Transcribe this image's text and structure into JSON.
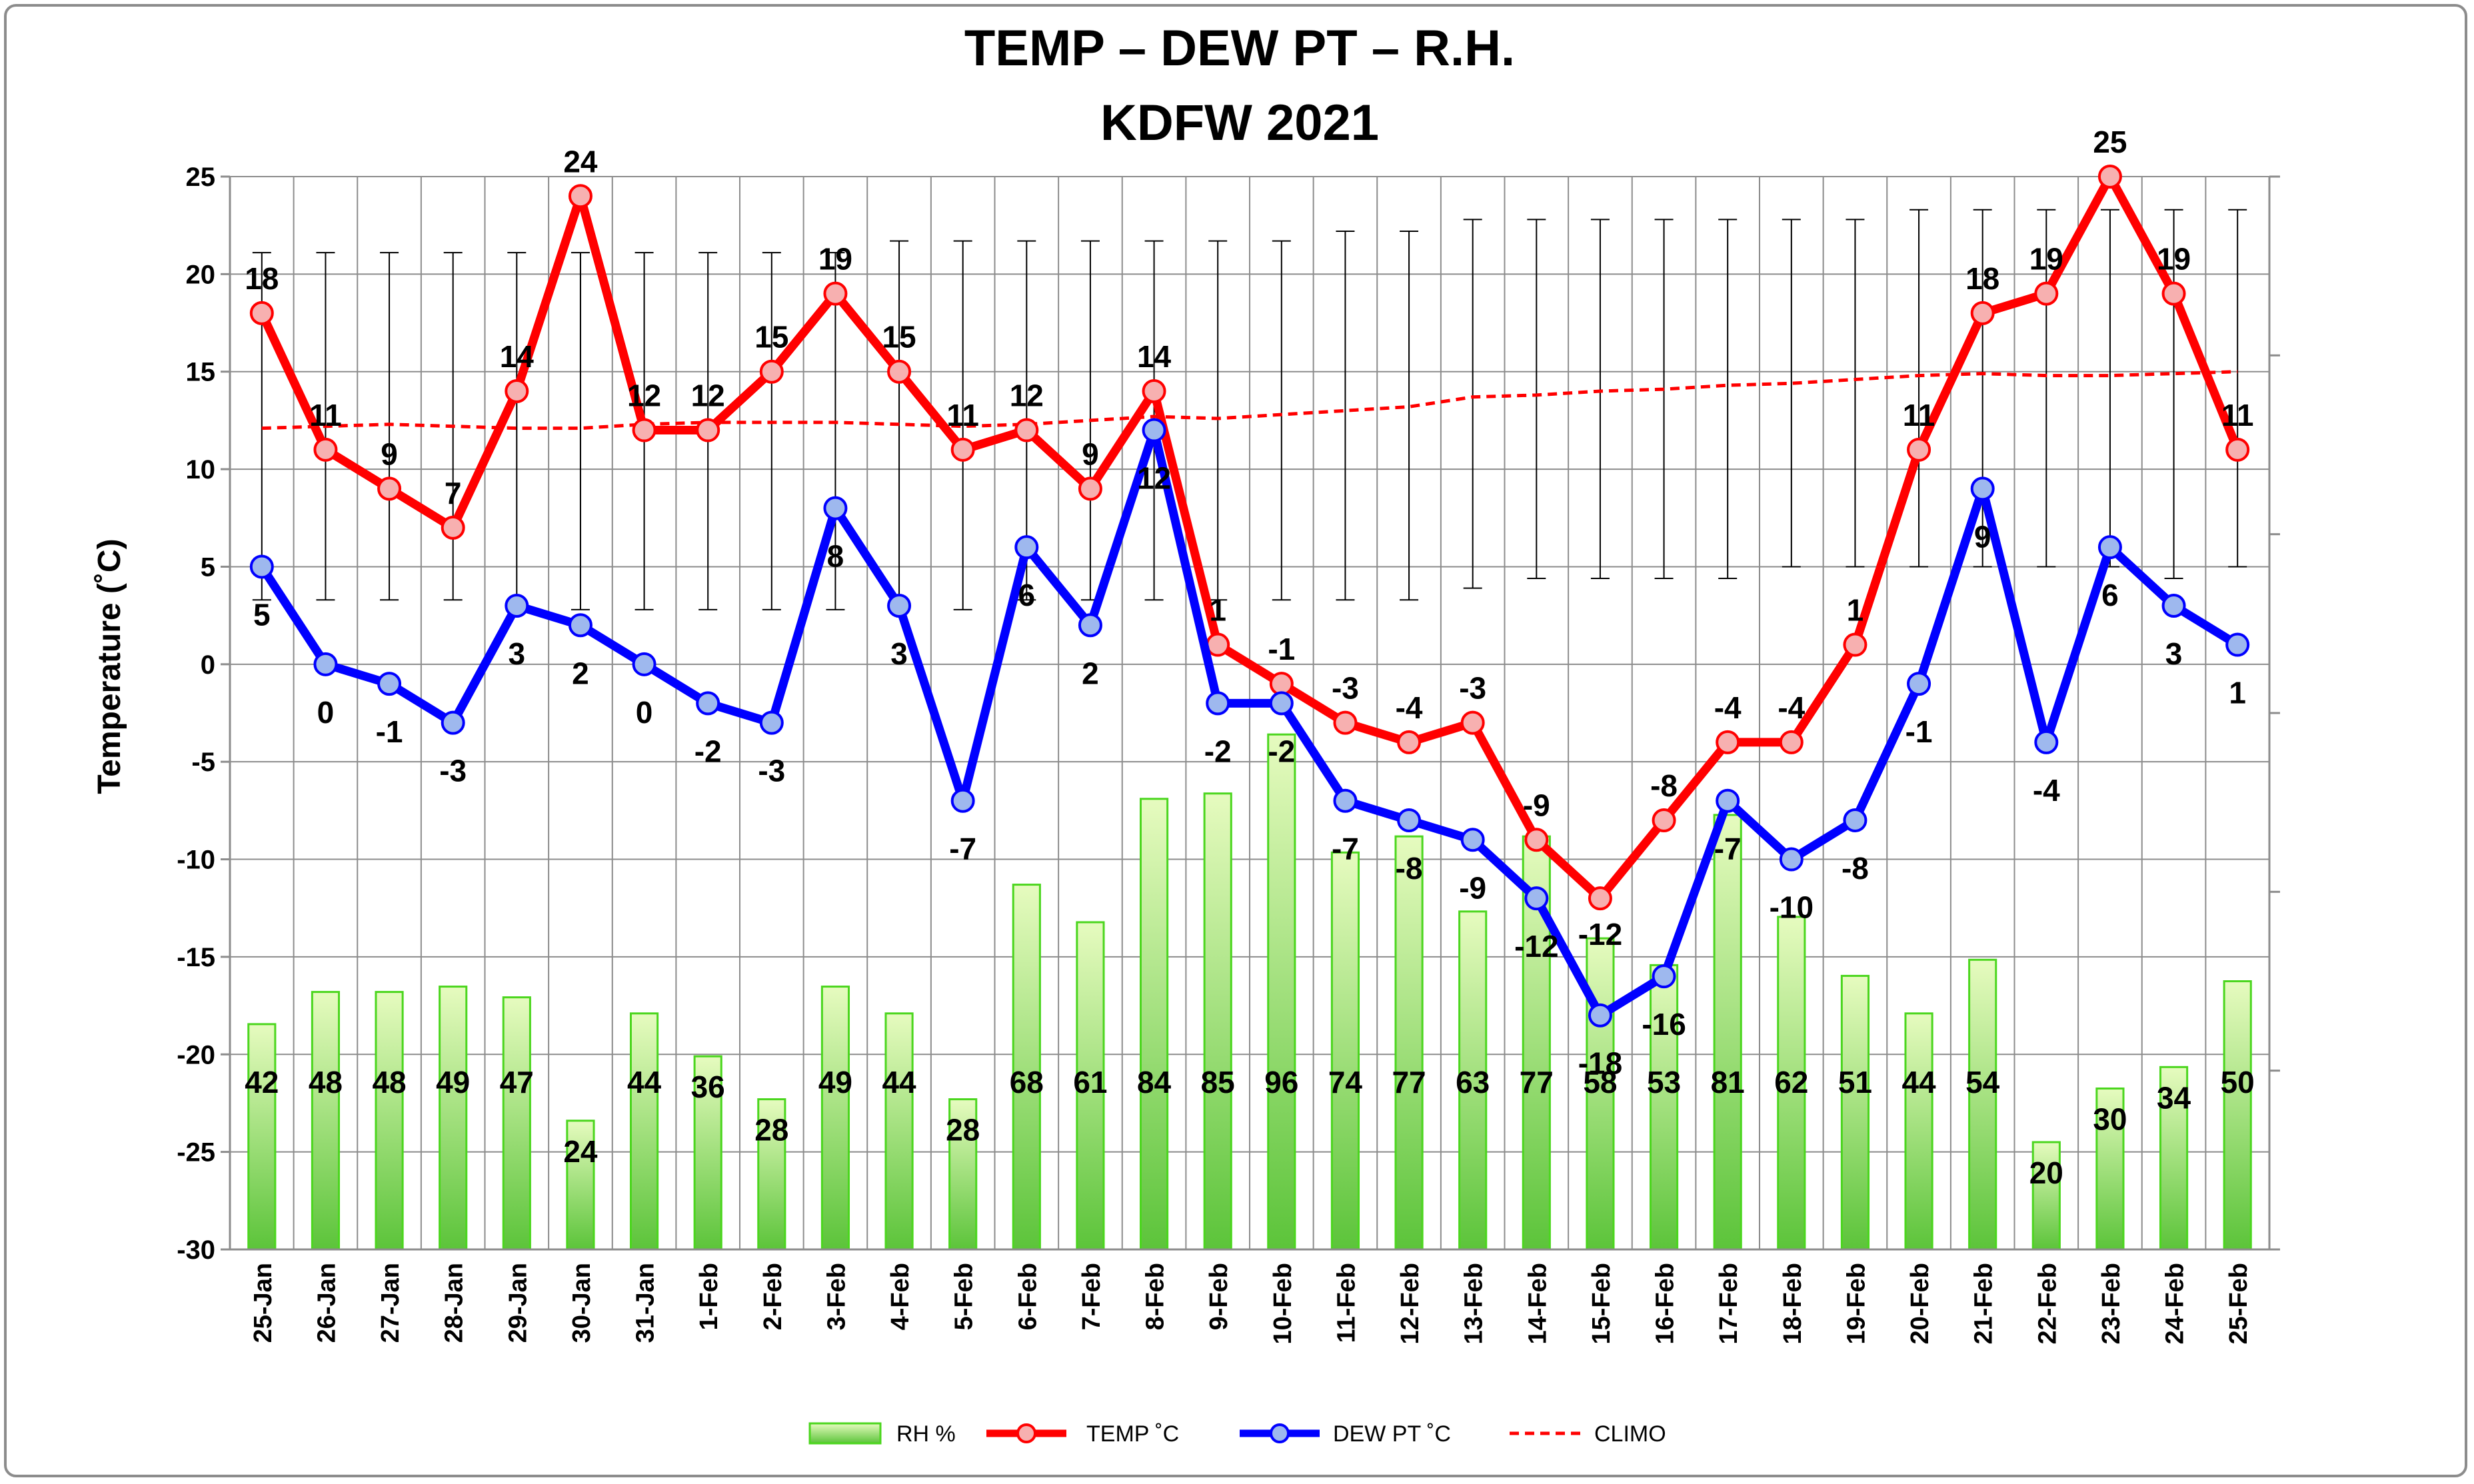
{
  "chart_data": {
    "type": "bar+line",
    "title": "TEMP – DEW PT – R.H.",
    "subtitle": "KDFW 2021",
    "ylabel": "Temperature (˚C)",
    "xlabel": "",
    "ylim": [
      -30,
      25
    ],
    "yticks": [
      25,
      20,
      15,
      10,
      5,
      0,
      -5,
      -10,
      -15,
      -20,
      -25,
      -30
    ],
    "grid": true,
    "legend_position": "bottom",
    "categories": [
      "25-Jan",
      "26-Jan",
      "27-Jan",
      "28-Jan",
      "29-Jan",
      "30-Jan",
      "31-Jan",
      "1-Feb",
      "2-Feb",
      "3-Feb",
      "4-Feb",
      "5-Feb",
      "6-Feb",
      "7-Feb",
      "8-Feb",
      "9-Feb",
      "10-Feb",
      "11-Feb",
      "12-Feb",
      "13-Feb",
      "14-Feb",
      "15-Feb",
      "16-Feb",
      "17-Feb",
      "18-Feb",
      "19-Feb",
      "20-Feb",
      "21-Feb",
      "22-Feb",
      "23-Feb",
      "24-Feb",
      "25-Feb"
    ],
    "series": [
      {
        "name": "RH %",
        "type": "bar",
        "color": "#9ae45a",
        "values": [
          42,
          48,
          48,
          49,
          47,
          24,
          44,
          36,
          28,
          49,
          44,
          28,
          68,
          61,
          84,
          85,
          96,
          74,
          77,
          63,
          77,
          58,
          53,
          81,
          62,
          51,
          44,
          54,
          20,
          30,
          34,
          50
        ]
      },
      {
        "name": "TEMP ˚C",
        "type": "line",
        "color": "#ff0000",
        "values": [
          18,
          11,
          9,
          7,
          14,
          24,
          12,
          12,
          15,
          19,
          15,
          11,
          12,
          9,
          14,
          1,
          -1,
          -3,
          -4,
          -3,
          -9,
          -12,
          -8,
          -4,
          -4,
          1,
          11,
          18,
          19,
          25,
          19,
          11
        ]
      },
      {
        "name": "DEW PT ˚C",
        "type": "line",
        "color": "#0000ff",
        "values": [
          5,
          0,
          -1,
          -3,
          3,
          2,
          0,
          -2,
          -3,
          8,
          3,
          -7,
          6,
          2,
          12,
          -2,
          -2,
          -7,
          -8,
          -9,
          -12,
          -18,
          -16,
          -7,
          -10,
          -8,
          -1,
          9,
          -4,
          6,
          3,
          1
        ]
      },
      {
        "name": "CLIMO",
        "type": "line",
        "style": "dashed",
        "color": "#ff0000",
        "values": [
          12.1,
          12.2,
          12.3,
          12.2,
          12.1,
          12.1,
          12.3,
          12.4,
          12.4,
          12.4,
          12.3,
          12.2,
          12.3,
          12.5,
          12.7,
          12.6,
          12.8,
          13.0,
          13.2,
          13.7,
          13.8,
          14.0,
          14.1,
          14.3,
          14.4,
          14.6,
          14.8,
          14.9,
          14.8,
          14.8,
          14.9,
          15.0
        ]
      }
    ],
    "climo_range": {
      "high": [
        21.1,
        21.1,
        21.1,
        21.1,
        21.1,
        21.1,
        21.1,
        21.1,
        21.1,
        21.1,
        21.7,
        21.7,
        21.7,
        21.7,
        21.7,
        21.7,
        21.7,
        22.2,
        22.2,
        22.8,
        22.8,
        22.8,
        22.8,
        22.8,
        22.8,
        22.8,
        23.3,
        23.3,
        23.3,
        23.3,
        23.3,
        23.3
      ],
      "low": [
        3.3,
        3.3,
        3.3,
        3.3,
        3.3,
        2.8,
        2.8,
        2.8,
        2.8,
        2.8,
        2.8,
        2.8,
        3.3,
        3.3,
        3.3,
        3.3,
        3.3,
        3.3,
        3.3,
        3.9,
        4.4,
        4.4,
        4.4,
        4.4,
        5.0,
        5.0,
        5.0,
        5.0,
        5.0,
        5.0,
        4.4,
        5.0
      ]
    },
    "rh_scale": {
      "min": 0,
      "max": 200
    },
    "temp_label_offsets": [
      "above",
      "above",
      "above",
      "above",
      "above",
      "above",
      "above",
      "above",
      "above",
      "above",
      "above",
      "above",
      "above",
      "above",
      "above",
      "above",
      "above",
      "above",
      "above",
      "above",
      "above",
      "below",
      "above",
      "above",
      "above",
      "above",
      "above",
      "above",
      "above",
      "above",
      "above",
      "above"
    ],
    "dew_label_offsets": [
      "below",
      "below",
      "below",
      "below",
      "below",
      "below",
      "below",
      "below",
      "below",
      "below",
      "below",
      "below",
      "below",
      "below",
      "below",
      "below",
      "below",
      "below",
      "below",
      "below",
      "below",
      "below",
      "below",
      "below",
      "below",
      "below",
      "below",
      "below",
      "below",
      "below",
      "below",
      "below"
    ]
  },
  "legend": {
    "rh": "RH %",
    "temp": "TEMP  ˚C",
    "dew": "DEW PT  ˚C",
    "climo": "CLIMO"
  },
  "colors": {
    "temp": "#ff0000",
    "dew": "#0000ff",
    "rh_fill_top": "#e6fbbf",
    "rh_fill_bottom": "#5cc43a",
    "rh_border": "#4bd61e",
    "grid": "#8c8c8c"
  }
}
